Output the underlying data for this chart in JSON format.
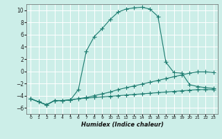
{
  "xlabel": "Humidex (Indice chaleur)",
  "background_color": "#cceee8",
  "grid_color": "#ffffff",
  "line_color": "#1a7a6e",
  "xlim": [
    -0.5,
    23.5
  ],
  "ylim": [
    -7,
    11
  ],
  "xticks": [
    0,
    1,
    2,
    3,
    4,
    5,
    6,
    7,
    8,
    9,
    10,
    11,
    12,
    13,
    14,
    15,
    16,
    17,
    18,
    19,
    20,
    21,
    22,
    23
  ],
  "yticks": [
    -6,
    -4,
    -2,
    0,
    2,
    4,
    6,
    8,
    10
  ],
  "series_main_x": [
    0,
    1,
    2,
    3,
    4,
    5,
    6,
    7,
    8,
    9,
    10,
    11,
    12,
    13,
    14,
    15,
    16,
    17,
    18,
    19,
    20,
    21,
    22,
    23
  ],
  "series_main_y": [
    -4.5,
    -5.0,
    -5.5,
    -4.8,
    -4.8,
    -4.7,
    -3.0,
    3.3,
    5.7,
    7.0,
    8.5,
    9.7,
    10.2,
    10.4,
    10.5,
    10.2,
    9.0,
    1.5,
    -0.2,
    -0.3,
    -2.2,
    -2.5,
    -2.7,
    -2.8
  ],
  "series_low_x": [
    0,
    1,
    2,
    3,
    4,
    5,
    6,
    7,
    8,
    9,
    10,
    11,
    12,
    13,
    14,
    15,
    16,
    17,
    18,
    19,
    20,
    21,
    22,
    23
  ],
  "series_low_y": [
    -4.5,
    -5.0,
    -5.5,
    -4.8,
    -4.8,
    -4.7,
    -4.5,
    -4.4,
    -4.3,
    -4.2,
    -4.1,
    -4.0,
    -3.9,
    -3.8,
    -3.7,
    -3.6,
    -3.5,
    -3.4,
    -3.3,
    -3.2,
    -3.1,
    -3.0,
    -3.0,
    -3.0
  ],
  "series_mid_x": [
    0,
    1,
    2,
    3,
    4,
    5,
    6,
    7,
    8,
    9,
    10,
    11,
    12,
    13,
    14,
    15,
    16,
    17,
    18,
    19,
    20,
    21,
    22,
    23
  ],
  "series_mid_y": [
    -4.5,
    -5.0,
    -5.5,
    -4.8,
    -4.8,
    -4.7,
    -4.5,
    -4.3,
    -4.0,
    -3.7,
    -3.4,
    -3.0,
    -2.7,
    -2.4,
    -2.1,
    -1.8,
    -1.5,
    -1.2,
    -0.9,
    -0.6,
    -0.3,
    -0.1,
    -0.1,
    -0.2
  ]
}
